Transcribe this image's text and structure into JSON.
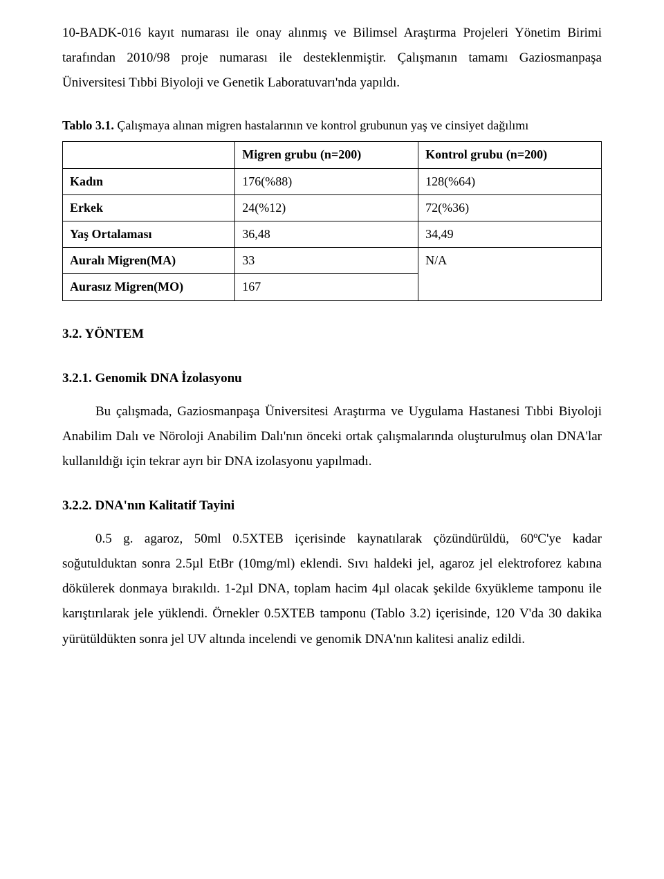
{
  "intro": {
    "p1": "10-BADK-016 kayıt numarası ile onay alınmış ve Bilimsel Araştırma Projeleri Yönetim Birimi tarafından 2010/98 proje numarası ile desteklenmiştir. Çalışmanın tamamı Gaziosmanpaşa Üniversitesi Tıbbi Biyoloji ve Genetik Laboratuvarı'nda yapıldı."
  },
  "table": {
    "caption_bold": "Tablo 3.1.",
    "caption_rest": " Çalışmaya alınan migren hastalarının ve kontrol grubunun yaş ve cinsiyet dağılımı",
    "header": {
      "left": "",
      "migren": "Migren grubu (n=200)",
      "kontrol": "Kontrol grubu (n=200)"
    },
    "rows": {
      "kadin": {
        "label": "Kadın",
        "migren": "176(%88)",
        "kontrol": "128(%64)"
      },
      "erkek": {
        "label": "Erkek",
        "migren": "24(%12)",
        "kontrol": "72(%36)"
      },
      "yas": {
        "label": "Yaş Ortalaması",
        "migren": "36,48",
        "kontrol": "34,49"
      },
      "aurali": {
        "label": "Auralı Migren(MA)",
        "migren": "33",
        "kontrol": "N/A"
      },
      "aurasiz": {
        "label": "Aurasız Migren(MO)",
        "migren": "167"
      }
    }
  },
  "sections": {
    "s32": "3.2. YÖNTEM",
    "s321": "3.2.1. Genomik DNA İzolasyonu",
    "s321_body": "Bu çalışmada, Gaziosmanpaşa Üniversitesi Araştırma ve Uygulama Hastanesi Tıbbi Biyoloji Anabilim Dalı ve Nöroloji Anabilim Dalı'nın önceki ortak çalışmalarında oluşturulmuş olan DNA'lar kullanıldığı için tekrar ayrı bir DNA izolasyonu yapılmadı.",
    "s322": "3.2.2. DNA'nın Kalitatif Tayini",
    "s322_body": "0.5 g. agaroz, 50ml 0.5XTEB içerisinde kaynatılarak çözündürüldü, 60ºC'ye kadar soğutulduktan sonra 2.5µl EtBr (10mg/ml) eklendi. Sıvı haldeki jel, agaroz jel elektroforez kabına dökülerek donmaya bırakıldı. 1-2µl DNA, toplam hacim 4µl olacak şekilde 6xyükleme tamponu ile karıştırılarak jele yüklendi. Örnekler 0.5XTEB tamponu (Tablo 3.2) içerisinde, 120 V'da 30 dakika yürütüldükten sonra jel  UV altında incelendi ve genomik DNA'nın kalitesi analiz edildi."
  }
}
